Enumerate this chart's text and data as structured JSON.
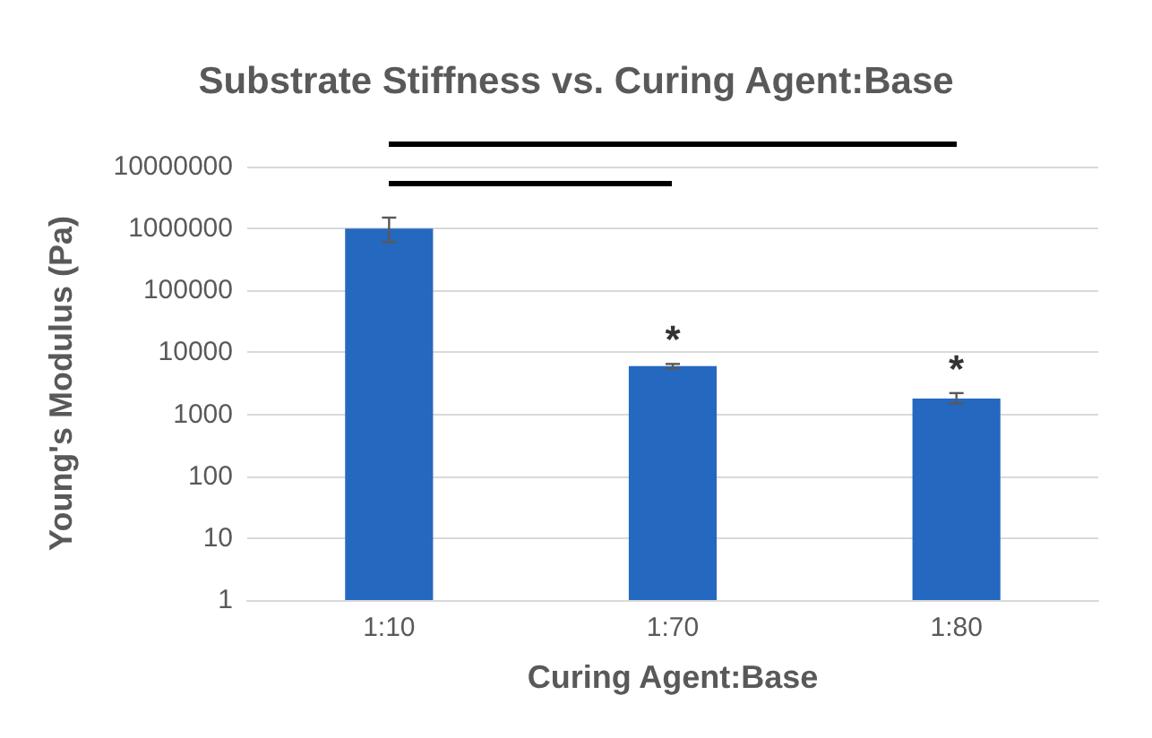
{
  "chart_data": {
    "type": "bar",
    "title": "Substrate Stiffness vs. Curing Agent:Base",
    "xlabel": "Curing Agent:Base",
    "ylabel": "Young's Modulus (Pa)",
    "categories": [
      "1:10",
      "1:70",
      "1:80"
    ],
    "series": [
      {
        "color": "#2468c0",
        "values": [
          1000000,
          6000,
          1800
        ],
        "errors": [
          [
            600000,
            1500000
          ],
          [
            5500,
            6500
          ],
          [
            1500,
            2200
          ]
        ],
        "value_labels": [
          null,
          "*",
          "*"
        ]
      }
    ],
    "log": "y",
    "ylim": [
      1,
      10000000
    ],
    "yticks": [
      1,
      10,
      100,
      1000,
      10000,
      100000,
      1000000,
      10000000
    ],
    "grid": "y"
  }
}
